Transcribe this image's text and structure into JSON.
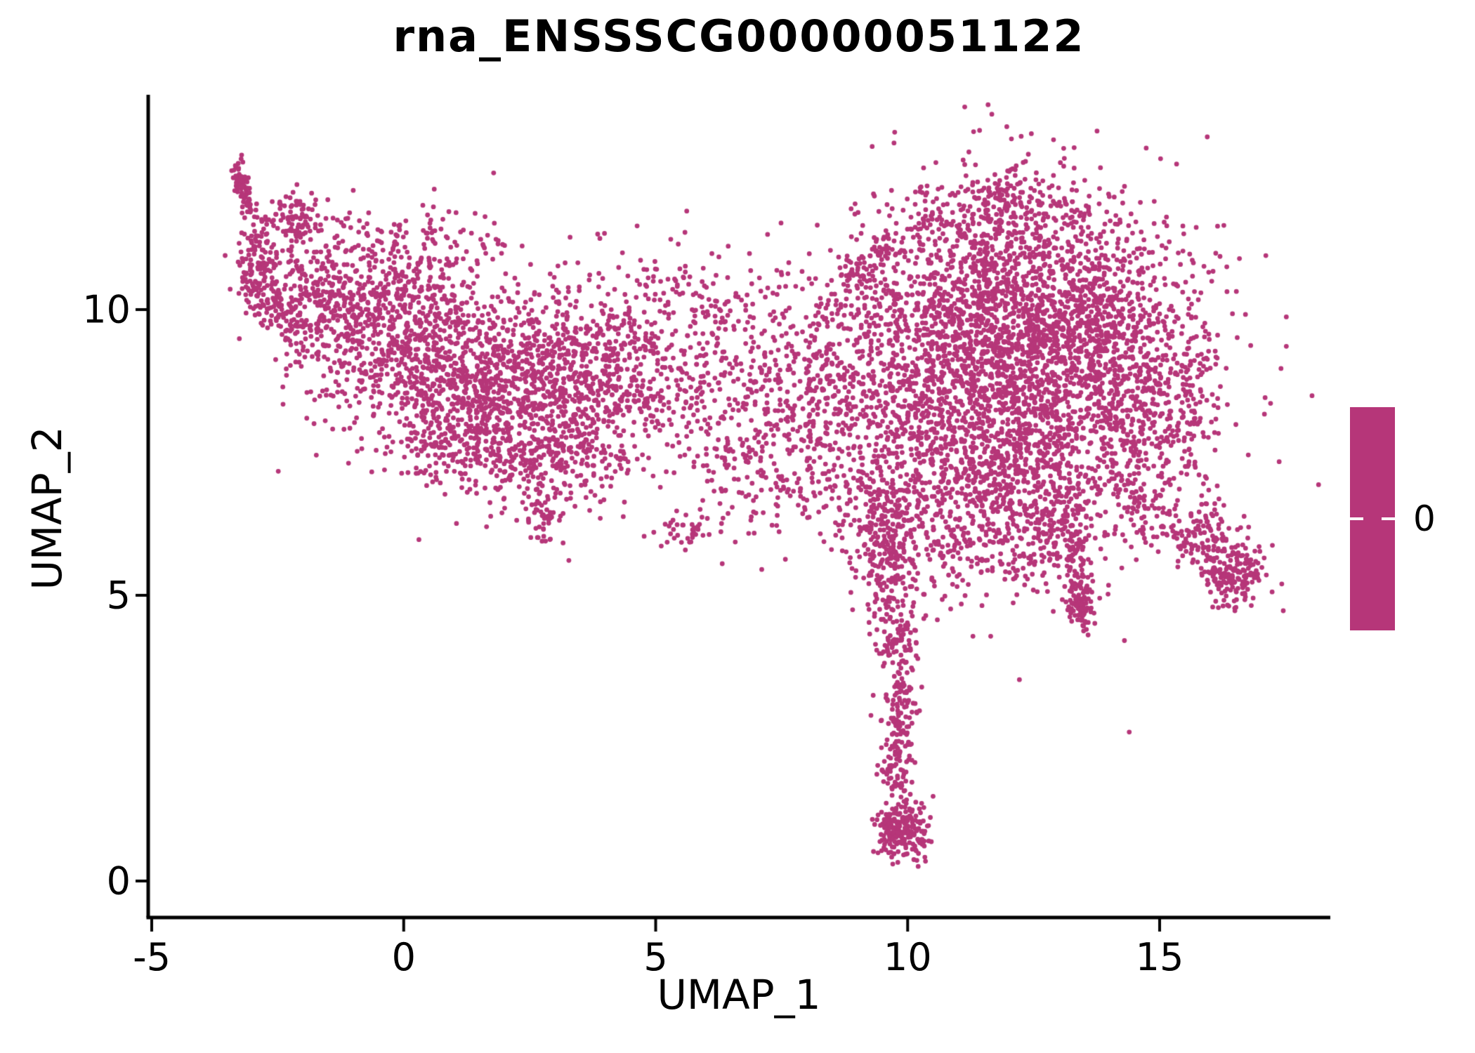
{
  "figure": {
    "background": "#FFFFFF"
  },
  "chart_data": {
    "type": "scatter",
    "title": "rna_ENSSSCG00000051122",
    "xlabel": "UMAP_1",
    "ylabel": "UMAP_2",
    "x_ticks": [
      -5,
      0,
      5,
      10,
      15
    ],
    "y_ticks": [
      0,
      5,
      10
    ],
    "xlim": [
      -5.1,
      18.4
    ],
    "ylim": [
      -0.65,
      13.8
    ],
    "grid": false,
    "axis_color": "#000000",
    "point_color": "#B63679",
    "point_radius_px": 3.4,
    "n_points_approx": 10000,
    "seed": 7,
    "legend": {
      "position": "right",
      "bar_color": "#B63679",
      "tick_color": "#FFFFFF",
      "tick_label": "0"
    },
    "clusters": [
      {
        "t": "b",
        "x0": -3.36,
        "y0": 12.62,
        "x1": -3.06,
        "y1": 11.7,
        "s": 0.07,
        "n": 70
      },
      {
        "t": "g",
        "x": -2.85,
        "y": 11.1,
        "sx": 0.22,
        "sy": 0.45,
        "n": 90
      },
      {
        "t": "g",
        "x": -2.05,
        "y": 11.62,
        "sx": 0.3,
        "sy": 0.22,
        "n": 80
      },
      {
        "t": "b",
        "x0": -3.05,
        "y0": 10.8,
        "x1": -2.15,
        "y1": 9.55,
        "s": 0.22,
        "n": 130
      },
      {
        "t": "b",
        "x0": -1.5,
        "y0": 11.45,
        "x1": 2.0,
        "y1": 11.15,
        "s": 0.28,
        "n": 80
      },
      {
        "t": "b",
        "x0": -2.3,
        "y0": 10.55,
        "x1": 0.8,
        "y1": 10.35,
        "s": 0.4,
        "n": 260
      },
      {
        "t": "g",
        "x": -1.55,
        "y": 9.85,
        "sx": 0.55,
        "sy": 0.6,
        "n": 200
      },
      {
        "t": "g",
        "x": -0.55,
        "y": 9.4,
        "sx": 0.6,
        "sy": 0.75,
        "n": 260
      },
      {
        "t": "g",
        "x": 0.5,
        "y": 9.1,
        "sx": 0.65,
        "sy": 0.85,
        "n": 330
      },
      {
        "t": "g",
        "x": 1.5,
        "y": 8.85,
        "sx": 0.7,
        "sy": 0.9,
        "n": 400
      },
      {
        "t": "g",
        "x": 2.5,
        "y": 8.7,
        "sx": 0.7,
        "sy": 0.9,
        "n": 380
      },
      {
        "t": "g",
        "x": 3.5,
        "y": 8.9,
        "sx": 0.6,
        "sy": 0.8,
        "n": 300
      },
      {
        "t": "g",
        "x": 4.35,
        "y": 9.15,
        "sx": 0.5,
        "sy": 0.65,
        "n": 170
      },
      {
        "t": "g",
        "x": 1.2,
        "y": 7.6,
        "sx": 0.8,
        "sy": 0.5,
        "n": 150
      },
      {
        "t": "g",
        "x": 2.6,
        "y": 7.25,
        "sx": 0.6,
        "sy": 0.45,
        "n": 120
      },
      {
        "t": "b",
        "x0": 2.78,
        "y0": 6.75,
        "x1": 2.85,
        "y1": 5.85,
        "s": 0.13,
        "n": 40
      },
      {
        "t": "g",
        "x": 3.9,
        "y": 7.6,
        "sx": 0.5,
        "sy": 0.5,
        "n": 90
      },
      {
        "t": "g",
        "x": 5.6,
        "y": 6.1,
        "sx": 0.28,
        "sy": 0.18,
        "n": 35
      },
      {
        "t": "g",
        "x": 5.3,
        "y": 9.0,
        "sx": 0.55,
        "sy": 0.8,
        "n": 130
      },
      {
        "t": "g",
        "x": 6.3,
        "y": 8.6,
        "sx": 0.6,
        "sy": 0.9,
        "n": 120
      },
      {
        "t": "b",
        "x0": 5.0,
        "y0": 10.55,
        "x1": 7.6,
        "y1": 9.95,
        "s": 0.35,
        "n": 70
      },
      {
        "t": "g",
        "x": 7.5,
        "y": 8.7,
        "sx": 0.75,
        "sy": 1.05,
        "n": 240
      },
      {
        "t": "g",
        "x": 8.6,
        "y": 8.3,
        "sx": 0.6,
        "sy": 1.15,
        "n": 250
      },
      {
        "t": "g",
        "x": 7.2,
        "y": 7.0,
        "sx": 0.8,
        "sy": 0.45,
        "n": 80
      },
      {
        "t": "g",
        "x": 12.3,
        "y": 9.0,
        "sx": 1.65,
        "sy": 1.5,
        "n": 2500
      },
      {
        "t": "g",
        "x": 10.4,
        "y": 8.2,
        "sx": 0.8,
        "sy": 1.0,
        "n": 340
      },
      {
        "t": "g",
        "x": 11.3,
        "y": 10.3,
        "sx": 0.9,
        "sy": 0.8,
        "n": 360
      },
      {
        "t": "g",
        "x": 13.6,
        "y": 10.2,
        "sx": 0.9,
        "sy": 0.7,
        "n": 320
      },
      {
        "t": "g",
        "x": 14.6,
        "y": 8.6,
        "sx": 0.7,
        "sy": 0.9,
        "n": 270
      },
      {
        "t": "g",
        "x": 12.2,
        "y": 7.0,
        "sx": 1.0,
        "sy": 0.55,
        "n": 280
      },
      {
        "t": "g",
        "x": 12.1,
        "y": 11.6,
        "sx": 0.7,
        "sy": 0.35,
        "n": 130
      },
      {
        "t": "g",
        "x": 12.0,
        "y": 12.0,
        "sx": 0.35,
        "sy": 0.22,
        "n": 50
      },
      {
        "t": "b",
        "x0": 8.75,
        "y0": 10.55,
        "x1": 10.6,
        "y1": 11.75,
        "s": 0.16,
        "n": 90
      },
      {
        "t": "g",
        "x": 9.6,
        "y": 10.0,
        "sx": 0.5,
        "sy": 0.5,
        "n": 70
      },
      {
        "t": "g",
        "x": 15.6,
        "y": 8.2,
        "sx": 0.35,
        "sy": 0.8,
        "n": 80
      },
      {
        "t": "g",
        "x": 9.6,
        "y": 6.5,
        "sx": 0.45,
        "sy": 0.4,
        "n": 160
      },
      {
        "t": "b",
        "x0": 9.6,
        "y0": 6.1,
        "x1": 9.8,
        "y1": 4.4,
        "s": 0.28,
        "n": 180
      },
      {
        "t": "b",
        "x0": 9.8,
        "y0": 4.4,
        "x1": 9.85,
        "y1": 2.6,
        "s": 0.2,
        "n": 140
      },
      {
        "t": "b",
        "x0": 9.85,
        "y0": 2.6,
        "x1": 9.75,
        "y1": 1.6,
        "s": 0.16,
        "n": 80
      },
      {
        "t": "g",
        "x": 9.95,
        "y": 0.85,
        "sx": 0.28,
        "sy": 0.28,
        "n": 170
      },
      {
        "t": "b",
        "x0": 9.5,
        "y0": 1.15,
        "x1": 9.85,
        "y1": 0.7,
        "s": 0.1,
        "n": 50
      },
      {
        "t": "g",
        "x": 11.2,
        "y": 5.9,
        "sx": 0.65,
        "sy": 0.5,
        "n": 120
      },
      {
        "t": "g",
        "x": 12.6,
        "y": 5.9,
        "sx": 0.5,
        "sy": 0.45,
        "n": 100
      },
      {
        "t": "b",
        "x0": 13.25,
        "y0": 6.5,
        "x1": 13.45,
        "y1": 4.65,
        "s": 0.11,
        "n": 110
      },
      {
        "t": "g",
        "x": 13.45,
        "y": 4.8,
        "sx": 0.14,
        "sy": 0.22,
        "n": 60
      },
      {
        "t": "b",
        "x0": 14.35,
        "y0": 6.85,
        "x1": 16.2,
        "y1": 5.6,
        "s": 0.28,
        "n": 150
      },
      {
        "t": "g",
        "x": 16.5,
        "y": 5.35,
        "sx": 0.33,
        "sy": 0.27,
        "n": 160
      },
      {
        "t": "g",
        "x": 15.95,
        "y": 6.1,
        "sx": 0.3,
        "sy": 0.28,
        "n": 50
      }
    ]
  }
}
